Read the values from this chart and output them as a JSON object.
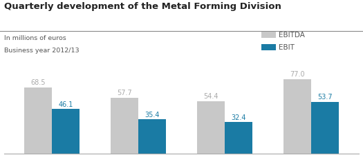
{
  "title": "Quarterly development of the Metal Forming Division",
  "subtitle_line1": "In millions of euros",
  "subtitle_line2": "Business year 2012/13",
  "ebitda_values": [
    68.5,
    57.7,
    54.4,
    77.0
  ],
  "ebit_values": [
    46.1,
    35.4,
    32.4,
    53.7
  ],
  "ebitda_color": "#c8c8c8",
  "ebit_color": "#1a7ba4",
  "ebitda_label_color": "#aaaaaa",
  "ebit_label_color": "#1a7ba4",
  "legend_ebitda": "EBITDA",
  "legend_ebit": "EBIT",
  "bar_width": 0.32,
  "ylim": [
    0,
    92
  ],
  "title_fontsize": 9.5,
  "subtitle_fontsize": 6.8,
  "label_fontsize": 7.0,
  "tick_fontsize": 8.0,
  "legend_fontsize": 7.5,
  "title_color": "#222222",
  "subtitle_color": "#555555",
  "tick_color": "#555555",
  "spine_color": "#aaaaaa",
  "background_color": "#ffffff"
}
